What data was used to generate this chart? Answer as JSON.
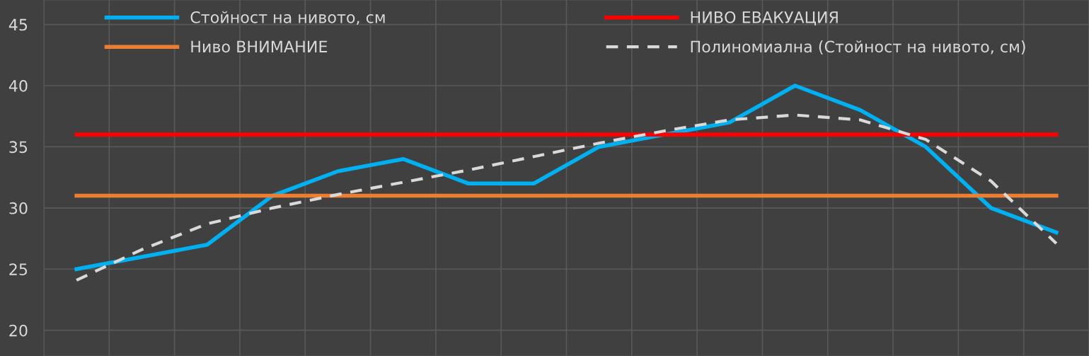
{
  "chart_data": {
    "type": "line",
    "categories": [
      null,
      null,
      null,
      null,
      null,
      null,
      null,
      null,
      null,
      null,
      null,
      null,
      null,
      null,
      null,
      null
    ],
    "series": [
      {
        "name": "Стойност на нивото, см",
        "color": "#00b0f0",
        "values": [
          25,
          26,
          27,
          31,
          33,
          34,
          32,
          32,
          35,
          36,
          37,
          40,
          38,
          35,
          30,
          28
        ]
      },
      {
        "name": "Ниво ВНИМАНИЕ",
        "color": "#ed7d31",
        "values": [
          31,
          31,
          31,
          31,
          31,
          31,
          31,
          31,
          31,
          31,
          31,
          31,
          31,
          31,
          31,
          31
        ]
      },
      {
        "name": "НИВО ЕВАКУАЦИЯ",
        "color": "#ff0000",
        "values": [
          36,
          36,
          36,
          36,
          36,
          36,
          36,
          36,
          36,
          36,
          36,
          36,
          36,
          36,
          36,
          36
        ]
      },
      {
        "name": "Полиномиална (Стойност на нивото, см)",
        "color": "#d9d9d9",
        "line_style": "dashed",
        "values": [
          24.1,
          26.6,
          28.7,
          30.0,
          31.1,
          32.1,
          33.1,
          34.2,
          35.3,
          36.3,
          37.2,
          37.6,
          37.2,
          35.6,
          32.2,
          27.1
        ]
      }
    ],
    "ylim": [
      17.9,
      47
    ],
    "yticks": [
      20,
      25,
      30,
      35,
      40,
      45
    ],
    "grid": true,
    "legend": "top",
    "line_style": "solid",
    "marker": "none",
    "tick_labels": "y"
  }
}
